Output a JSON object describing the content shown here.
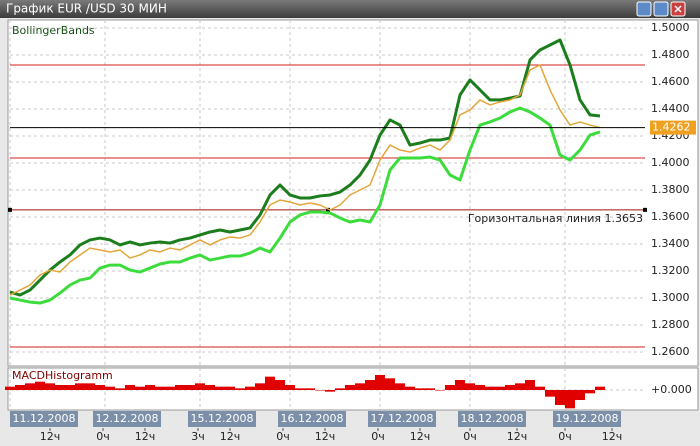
{
  "window": {
    "title": "График EUR /USD  30 МИН"
  },
  "chart_data": [
    {
      "type": "line",
      "title": "BollingerBands",
      "x": [
        0,
        5,
        10,
        15,
        20,
        25,
        30,
        35,
        40,
        45,
        50,
        55,
        60,
        65,
        70,
        75,
        80,
        85,
        90,
        95,
        100,
        105,
        110,
        115,
        120,
        125,
        130,
        135,
        140,
        145,
        150,
        155,
        160,
        165,
        170,
        175,
        180,
        185,
        190,
        195,
        200,
        205,
        210,
        215,
        220,
        225,
        230,
        235,
        240,
        245,
        250,
        255,
        260,
        265,
        270,
        275,
        280,
        285,
        290,
        295
      ],
      "xlim": [
        0,
        317.5
      ],
      "ylim": [
        1.2504,
        1.5059
      ],
      "yticks": [
        {
          "value": 1.5,
          "label": "1.5000"
        },
        {
          "value": 1.48,
          "label": "1.4800"
        },
        {
          "value": 1.46,
          "label": "1.4600"
        },
        {
          "value": 1.44,
          "label": "1.4400"
        },
        {
          "value": 1.42,
          "label": "1.4200"
        },
        {
          "value": 1.4,
          "label": "1.4000"
        },
        {
          "value": 1.38,
          "label": "1.3800"
        },
        {
          "value": 1.36,
          "label": "1.3600"
        },
        {
          "value": 1.34,
          "label": "1.3400"
        },
        {
          "value": 1.32,
          "label": "1.3200"
        },
        {
          "value": 1.3,
          "label": "1.3000"
        },
        {
          "value": 1.28,
          "label": "1.2800"
        },
        {
          "value": 1.26,
          "label": "1.2600"
        }
      ],
      "grid": true,
      "series": [
        {
          "color": "#1b7d1b",
          "values": [
            1.3044,
            1.3022,
            1.3059,
            1.3133,
            1.3207,
            1.3267,
            1.3319,
            1.3393,
            1.343,
            1.3444,
            1.343,
            1.3393,
            1.3415,
            1.3393,
            1.3407,
            1.3415,
            1.3407,
            1.343,
            1.3444,
            1.3467,
            1.3489,
            1.3504,
            1.3489,
            1.3504,
            1.3519,
            1.3615,
            1.3763,
            1.3837,
            1.3763,
            1.3741,
            1.3741,
            1.3756,
            1.3763,
            1.3785,
            1.3837,
            1.3911,
            1.4022,
            1.4207,
            1.4319,
            1.4281,
            1.4133,
            1.4148,
            1.417,
            1.417,
            1.4185,
            1.4504,
            1.4615,
            1.4541,
            1.4467,
            1.4467,
            1.4481,
            1.4496,
            1.4763,
            1.4837,
            1.4874,
            1.4911,
            1.4726,
            1.4467,
            1.4356,
            1.4348
          ]
        },
        {
          "color": "#3ddc3d",
          "values": [
            1.3,
            1.2985,
            1.297,
            1.2963,
            1.2985,
            1.3037,
            1.3096,
            1.3133,
            1.3148,
            1.3222,
            1.3244,
            1.3244,
            1.3207,
            1.3193,
            1.3222,
            1.3252,
            1.3267,
            1.3267,
            1.3296,
            1.3319,
            1.3281,
            1.3296,
            1.3311,
            1.3311,
            1.3333,
            1.337,
            1.3341,
            1.3444,
            1.3563,
            1.3615,
            1.3637,
            1.3637,
            1.363,
            1.3593,
            1.3563,
            1.3578,
            1.3563,
            1.3689,
            1.3948,
            1.4037,
            1.4037,
            1.4037,
            1.4044,
            1.4022,
            1.3911,
            1.3874,
            1.4096,
            1.4281,
            1.4304,
            1.4333,
            1.4378,
            1.4407,
            1.4378,
            1.4333,
            1.4281,
            1.4059,
            1.4022,
            1.4096,
            1.4207,
            1.423
          ]
        },
        {
          "color": "#e3a63a",
          "values": [
            1.3022,
            1.3059,
            1.3096,
            1.317,
            1.3207,
            1.3193,
            1.3267,
            1.3319,
            1.337,
            1.3356,
            1.3341,
            1.3356,
            1.3296,
            1.3319,
            1.3356,
            1.3341,
            1.337,
            1.3356,
            1.3393,
            1.343,
            1.3393,
            1.343,
            1.3452,
            1.3444,
            1.3467,
            1.3563,
            1.3689,
            1.3726,
            1.3711,
            1.3689,
            1.3704,
            1.3689,
            1.3652,
            1.3689,
            1.3763,
            1.38,
            1.3837,
            1.4022,
            1.4133,
            1.4096,
            1.4081,
            1.4111,
            1.4133,
            1.4096,
            1.417,
            1.4356,
            1.4393,
            1.4467,
            1.443,
            1.4452,
            1.4467,
            1.4504,
            1.4689,
            1.4726,
            1.4541,
            1.4393,
            1.4281,
            1.4304,
            1.4281,
            1.4262
          ]
        }
      ],
      "current_price": 1.4262,
      "hlines": [
        1.4726,
        1.4037,
        1.2637
      ],
      "hline": {
        "value": 1.3653,
        "label": "Горизонтальная линия 1.3653"
      },
      "date_ticks": [
        {
          "value": 0,
          "label": "11.12.2008"
        },
        {
          "value": 47.5,
          "label": "12.12.2008"
        },
        {
          "value": 95,
          "label": "15.12.2008"
        },
        {
          "value": 140,
          "label": "16.12.2008"
        },
        {
          "value": 185,
          "label": "17.12.2008"
        },
        {
          "value": 230,
          "label": "18.12.2008"
        },
        {
          "value": 277.5,
          "label": "19.12.2008"
        }
      ],
      "hour_ticks": [
        {
          "value": 20,
          "label": "12ч"
        },
        {
          "value": 46.5,
          "label": "0ч"
        },
        {
          "value": 67.5,
          "label": "12ч"
        },
        {
          "value": 94,
          "label": "3ч"
        },
        {
          "value": 110,
          "label": "12ч"
        },
        {
          "value": 136.5,
          "label": "0ч"
        },
        {
          "value": 157.5,
          "label": "12ч"
        },
        {
          "value": 184,
          "label": "0ч"
        },
        {
          "value": 205,
          "label": "12ч"
        },
        {
          "value": 230,
          "label": "0ч"
        },
        {
          "value": 253.5,
          "label": "12ч"
        },
        {
          "value": 277.5,
          "label": "0ч"
        },
        {
          "value": 301,
          "label": "12ч"
        }
      ]
    },
    {
      "type": "bar",
      "title": "MACDHistogramm",
      "x": [
        0,
        5,
        10,
        15,
        20,
        25,
        30,
        35,
        40,
        45,
        50,
        55,
        60,
        65,
        70,
        75,
        80,
        85,
        90,
        95,
        100,
        105,
        110,
        115,
        120,
        125,
        130,
        135,
        140,
        145,
        150,
        155,
        160,
        165,
        170,
        175,
        180,
        185,
        190,
        195,
        200,
        205,
        210,
        215,
        220,
        225,
        230,
        235,
        240,
        245,
        250,
        255,
        260,
        265,
        270,
        275,
        280,
        285,
        290,
        295
      ],
      "xlim": [
        0,
        317.5
      ],
      "ylim": [
        -0.012,
        0.012
      ],
      "yticks": [
        {
          "value": 0,
          "label": "+0.000"
        }
      ],
      "color": "#e00000",
      "values": [
        0.002,
        0.003,
        0.004,
        0.005,
        0.004,
        0.003,
        0.003,
        0.004,
        0.004,
        0.003,
        0.002,
        0.001,
        0.003,
        0.002,
        0.003,
        0.002,
        0.002,
        0.003,
        0.003,
        0.004,
        0.003,
        0.002,
        0.002,
        0.001,
        0.002,
        0.004,
        0.008,
        0.006,
        0.003,
        0.001,
        0.001,
        0.0,
        -0.001,
        0.001,
        0.003,
        0.004,
        0.006,
        0.009,
        0.007,
        0.004,
        0.002,
        0.001,
        0.001,
        0.0,
        0.003,
        0.006,
        0.004,
        0.003,
        0.002,
        0.002,
        0.003,
        0.004,
        0.006,
        0.002,
        -0.004,
        -0.009,
        -0.011,
        -0.006,
        -0.002,
        0.002
      ]
    }
  ]
}
